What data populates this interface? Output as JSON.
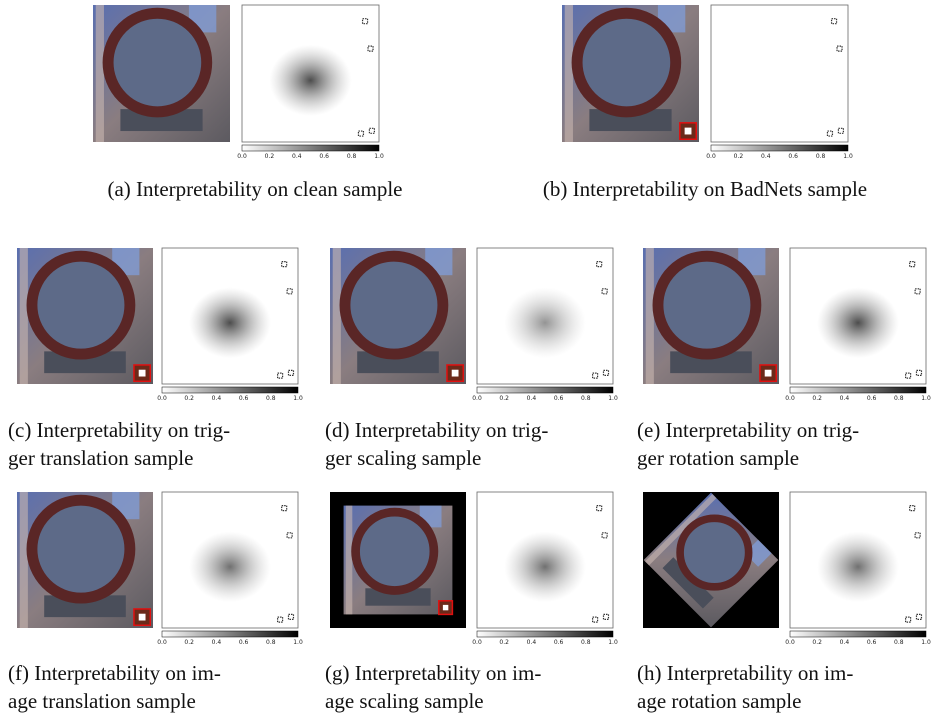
{
  "figure": {
    "colorbar_ticks": [
      "0.0",
      "0.2",
      "0.4",
      "0.6",
      "0.8",
      "1.0"
    ],
    "panels": [
      {
        "caption": [
          "(a) Interpretability on clean sample"
        ]
      },
      {
        "caption": [
          "(b) Interpretability on BadNets sample"
        ]
      },
      {
        "caption": [
          "(c) Interpretability on trig-",
          "ger translation sample"
        ]
      },
      {
        "caption": [
          "(d) Interpretability on trig-",
          "ger scaling sample"
        ]
      },
      {
        "caption": [
          "(e) Interpretability on trig-",
          "ger rotation sample"
        ]
      },
      {
        "caption": [
          "(f) Interpretability on im-",
          "age translation sample"
        ]
      },
      {
        "caption": [
          "(g) Interpretability on im-",
          "age scaling sample"
        ]
      },
      {
        "caption": [
          "(h) Interpretability on im-",
          "age rotation sample"
        ]
      }
    ]
  }
}
